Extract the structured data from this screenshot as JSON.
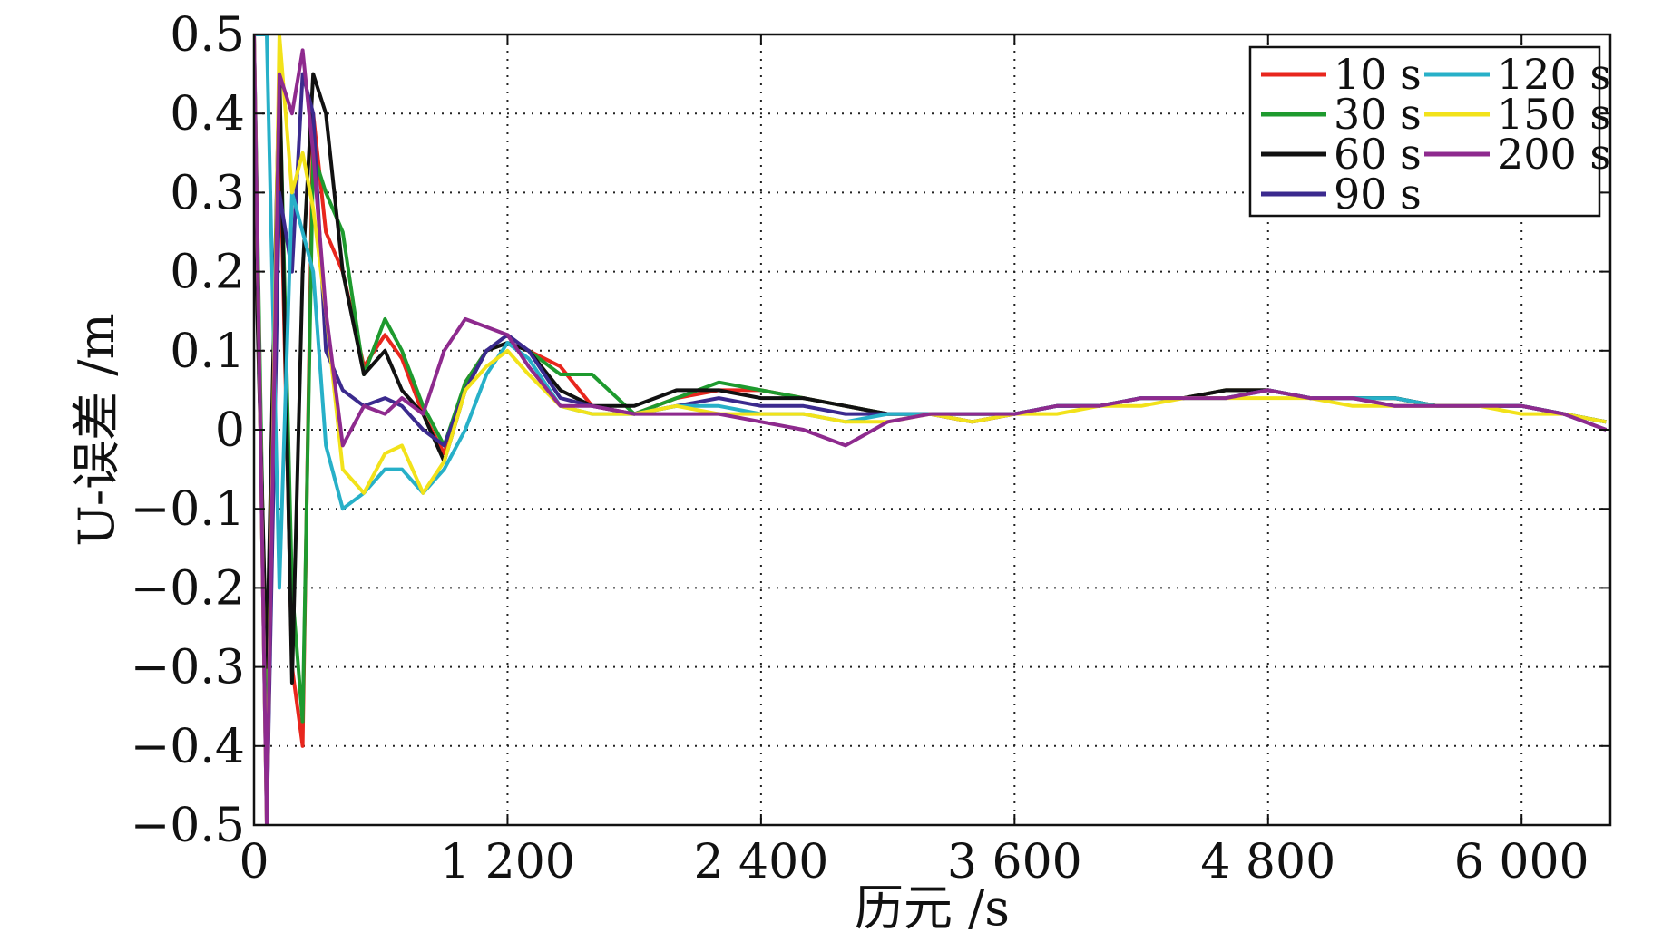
{
  "chart_data": {
    "type": "line",
    "xlabel": "历元 /s",
    "ylabel": "U-误差 /m",
    "xlim": [
      0,
      6420
    ],
    "ylim": [
      -0.5,
      0.5
    ],
    "xticks": [
      0,
      1200,
      2400,
      3600,
      4800,
      6000
    ],
    "xtick_labels": [
      "0",
      "1 200",
      "2 400",
      "3 600",
      "4 800",
      "6 000"
    ],
    "yticks": [
      -0.5,
      -0.4,
      -0.3,
      -0.2,
      -0.1,
      0,
      0.1,
      0.2,
      0.3,
      0.4,
      0.5
    ],
    "ytick_labels": [
      "−0.5",
      "−0.4",
      "−0.3",
      "−0.2",
      "−0.1",
      "0",
      "0.1",
      "0.2",
      "0.3",
      "0.4",
      "0.5"
    ],
    "grid": true,
    "legend_position": "top-right",
    "series": [
      {
        "name": "10 s",
        "color": "#e8261d",
        "x": [
          0,
          60,
          120,
          180,
          230,
          280,
          340,
          420,
          520,
          620,
          700,
          800,
          900,
          1000,
          1100,
          1200,
          1300,
          1450,
          1600,
          1800,
          2000,
          2200,
          2400,
          2600,
          2800,
          3000,
          3200,
          3400,
          3600,
          3800,
          4000,
          4200,
          4400,
          4600,
          4800,
          5000,
          5200,
          5400,
          5600,
          5800,
          6000,
          6200,
          6400
        ],
        "y": [
          0.45,
          -0.45,
          0.4,
          -0.3,
          -0.4,
          0.4,
          0.25,
          0.2,
          0.08,
          0.12,
          0.09,
          0.02,
          -0.03,
          0.06,
          0.1,
          0.11,
          0.1,
          0.08,
          0.03,
          0.02,
          0.04,
          0.05,
          0.05,
          0.04,
          0.03,
          0.02,
          0.02,
          0.01,
          0.02,
          0.03,
          0.03,
          0.04,
          0.04,
          0.05,
          0.05,
          0.04,
          0.04,
          0.04,
          0.03,
          0.03,
          0.03,
          0.02,
          0.01
        ]
      },
      {
        "name": "30 s",
        "color": "#1e9a2e",
        "x": [
          0,
          60,
          120,
          180,
          230,
          280,
          340,
          420,
          520,
          620,
          700,
          800,
          900,
          1000,
          1100,
          1200,
          1300,
          1450,
          1600,
          1800,
          2000,
          2200,
          2400,
          2600,
          2800,
          3000,
          3200,
          3400,
          3600,
          3800,
          4000,
          4200,
          4400,
          4600,
          4800,
          5000,
          5200,
          5400,
          5600,
          5800,
          6000,
          6200,
          6400
        ],
        "y": [
          0.5,
          -0.4,
          0.45,
          -0.2,
          -0.37,
          0.35,
          0.3,
          0.25,
          0.07,
          0.14,
          0.1,
          0.03,
          -0.02,
          0.06,
          0.1,
          0.11,
          0.1,
          0.07,
          0.07,
          0.02,
          0.04,
          0.06,
          0.05,
          0.04,
          0.03,
          0.02,
          0.02,
          0.02,
          0.02,
          0.03,
          0.03,
          0.04,
          0.04,
          0.05,
          0.05,
          0.04,
          0.04,
          0.04,
          0.03,
          0.03,
          0.03,
          0.02,
          0.01
        ]
      },
      {
        "name": "60 s",
        "color": "#111111",
        "x": [
          0,
          60,
          120,
          180,
          230,
          280,
          340,
          420,
          520,
          620,
          700,
          800,
          900,
          1000,
          1100,
          1200,
          1300,
          1450,
          1600,
          1800,
          2000,
          2200,
          2400,
          2600,
          2800,
          3000,
          3200,
          3400,
          3600,
          3800,
          4000,
          4200,
          4400,
          4600,
          4800,
          5000,
          5200,
          5400,
          5600,
          5800,
          6000,
          6200,
          6400
        ],
        "y": [
          0.3,
          -0.3,
          0.46,
          -0.32,
          0.2,
          0.45,
          0.4,
          0.2,
          0.07,
          0.1,
          0.05,
          0.02,
          -0.04,
          0.05,
          0.1,
          0.11,
          0.1,
          0.05,
          0.03,
          0.03,
          0.05,
          0.05,
          0.04,
          0.04,
          0.03,
          0.02,
          0.02,
          0.02,
          0.02,
          0.03,
          0.03,
          0.04,
          0.04,
          0.05,
          0.05,
          0.04,
          0.04,
          0.04,
          0.03,
          0.03,
          0.03,
          0.02,
          0.01
        ]
      },
      {
        "name": "90 s",
        "color": "#3b2a8e",
        "x": [
          0,
          60,
          120,
          180,
          230,
          280,
          340,
          420,
          520,
          620,
          700,
          800,
          900,
          1000,
          1100,
          1200,
          1300,
          1450,
          1600,
          1800,
          2000,
          2200,
          2400,
          2600,
          2800,
          3000,
          3200,
          3400,
          3600,
          3800,
          4000,
          4200,
          4400,
          4600,
          4800,
          5000,
          5200,
          5400,
          5600,
          5800,
          6000,
          6200,
          6400
        ],
        "y": [
          0.5,
          -0.5,
          0.3,
          0.2,
          0.45,
          0.4,
          0.1,
          0.05,
          0.03,
          0.04,
          0.03,
          0.0,
          -0.02,
          0.05,
          0.1,
          0.12,
          0.1,
          0.04,
          0.03,
          0.02,
          0.03,
          0.04,
          0.03,
          0.03,
          0.02,
          0.02,
          0.02,
          0.01,
          0.02,
          0.03,
          0.03,
          0.04,
          0.04,
          0.04,
          0.05,
          0.04,
          0.04,
          0.03,
          0.03,
          0.03,
          0.03,
          0.02,
          0.0
        ]
      },
      {
        "name": "120 s",
        "color": "#27b0c8",
        "x": [
          0,
          60,
          120,
          180,
          230,
          280,
          340,
          420,
          520,
          620,
          700,
          800,
          900,
          1000,
          1100,
          1200,
          1300,
          1450,
          1600,
          1800,
          2000,
          2200,
          2400,
          2600,
          2800,
          3000,
          3200,
          3400,
          3600,
          3800,
          4000,
          4200,
          4400,
          4600,
          4800,
          5000,
          5200,
          5400,
          5600,
          5800,
          6000,
          6200,
          6400
        ],
        "y": [
          0.5,
          0.5,
          -0.2,
          0.3,
          0.25,
          0.2,
          -0.02,
          -0.1,
          -0.08,
          -0.05,
          -0.05,
          -0.08,
          -0.05,
          0.0,
          0.07,
          0.11,
          0.09,
          0.03,
          0.02,
          0.02,
          0.03,
          0.03,
          0.02,
          0.02,
          0.01,
          0.02,
          0.02,
          0.02,
          0.02,
          0.03,
          0.03,
          0.04,
          0.04,
          0.04,
          0.05,
          0.04,
          0.04,
          0.04,
          0.03,
          0.03,
          0.03,
          0.02,
          0.01
        ]
      },
      {
        "name": "150 s",
        "color": "#f2e21a",
        "x": [
          0,
          60,
          120,
          180,
          230,
          280,
          340,
          420,
          520,
          620,
          700,
          800,
          900,
          1000,
          1100,
          1200,
          1300,
          1450,
          1600,
          1800,
          2000,
          2200,
          2400,
          2600,
          2800,
          3000,
          3200,
          3400,
          3600,
          3800,
          4000,
          4200,
          4400,
          4600,
          4800,
          5000,
          5200,
          5400,
          5600,
          5800,
          6000,
          6200,
          6400
        ],
        "y": [
          0.5,
          -0.5,
          0.5,
          0.3,
          0.35,
          0.28,
          0.15,
          -0.05,
          -0.08,
          -0.03,
          -0.02,
          -0.08,
          -0.04,
          0.05,
          0.08,
          0.1,
          0.07,
          0.03,
          0.02,
          0.02,
          0.03,
          0.02,
          0.02,
          0.02,
          0.01,
          0.01,
          0.02,
          0.01,
          0.02,
          0.02,
          0.03,
          0.03,
          0.04,
          0.04,
          0.04,
          0.04,
          0.03,
          0.03,
          0.03,
          0.03,
          0.02,
          0.02,
          0.01
        ]
      },
      {
        "name": "200 s",
        "color": "#8e2a8e",
        "x": [
          0,
          60,
          120,
          180,
          230,
          280,
          340,
          420,
          520,
          620,
          700,
          800,
          900,
          1000,
          1100,
          1200,
          1300,
          1450,
          1600,
          1800,
          2000,
          2200,
          2400,
          2600,
          2800,
          3000,
          3200,
          3400,
          3600,
          3800,
          4000,
          4200,
          4400,
          4600,
          4800,
          5000,
          5200,
          5400,
          5600,
          5800,
          6000,
          6200,
          6400
        ],
        "y": [
          0.5,
          -0.5,
          0.45,
          0.4,
          0.48,
          0.35,
          0.15,
          -0.02,
          0.03,
          0.02,
          0.04,
          0.02,
          0.1,
          0.14,
          0.13,
          0.12,
          0.08,
          0.03,
          0.03,
          0.02,
          0.02,
          0.02,
          0.01,
          0.0,
          -0.02,
          0.01,
          0.02,
          0.02,
          0.02,
          0.03,
          0.03,
          0.04,
          0.04,
          0.04,
          0.05,
          0.04,
          0.04,
          0.03,
          0.03,
          0.03,
          0.03,
          0.02,
          0.0
        ]
      }
    ]
  }
}
